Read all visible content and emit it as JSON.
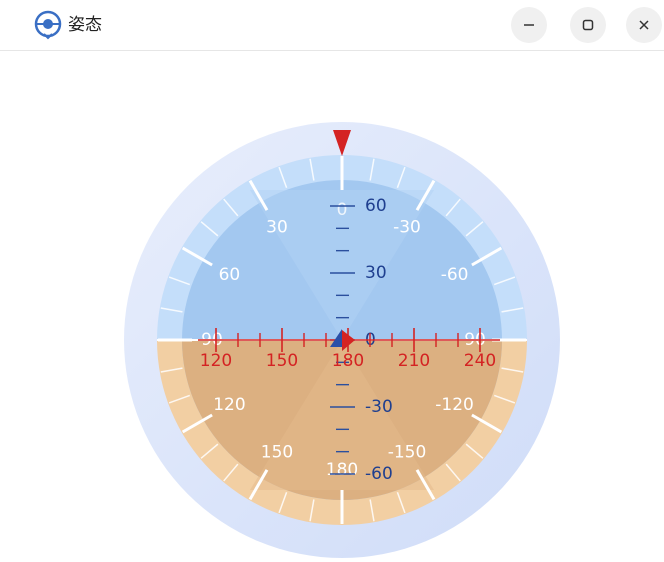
{
  "window": {
    "title": "姿态"
  },
  "gauge": {
    "roll_labels": [
      "0",
      "30",
      "60",
      "90",
      "120",
      "150",
      "180",
      "-150",
      "-120",
      "-90",
      "-60",
      "-30"
    ],
    "pitch_labels": [
      "60",
      "30",
      "0",
      "-30",
      "-60"
    ],
    "heading_labels": [
      "120",
      "150",
      "180",
      "210",
      "240"
    ]
  }
}
